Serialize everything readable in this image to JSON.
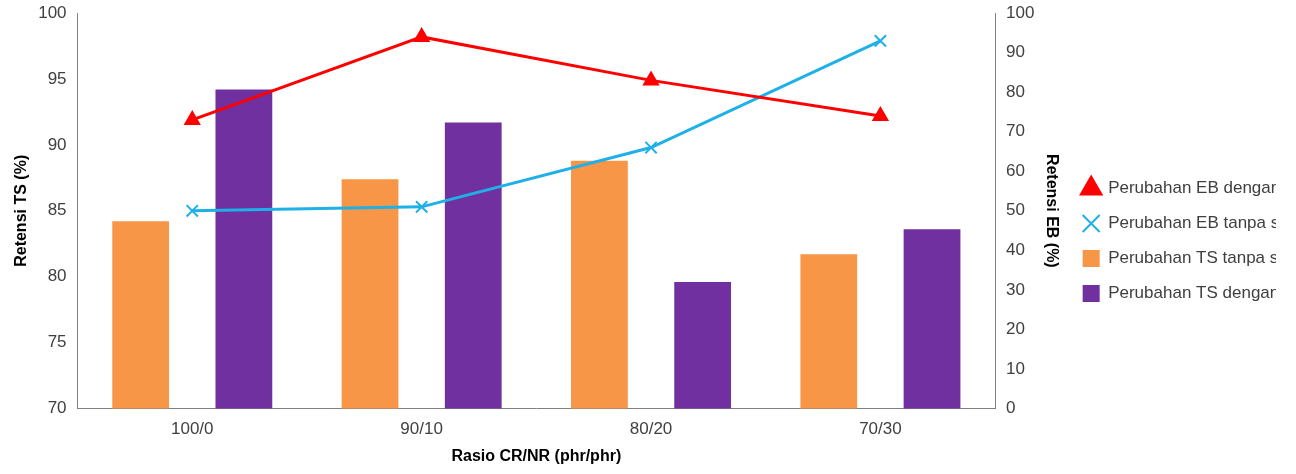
{
  "chart_data": {
    "type": "bar",
    "x_label": "Rasio CR/NR (phr/phr)",
    "y_label": "Retensi TS (%)",
    "y2_label": "Retensi EB (%)",
    "categories": [
      "100/0",
      "90/10",
      "80/20",
      "70/30"
    ],
    "ylim": [
      70,
      100
    ],
    "yticks": [
      70,
      75,
      80,
      85,
      90,
      95,
      100
    ],
    "y2lim": [
      0,
      100
    ],
    "y2ticks": [
      0,
      10,
      20,
      30,
      40,
      50,
      60,
      70,
      80,
      90,
      100
    ],
    "grid": false,
    "legend": "right",
    "series": [
      {
        "name": "Perubahan TS tanpa serat",
        "type": "bar",
        "color": "#f79646",
        "values": [
          84.2,
          87.4,
          88.8,
          81.7
        ]
      },
      {
        "name": "Perubahan TS dengan serat",
        "type": "bar",
        "color": "#7030a0",
        "values": [
          94.2,
          91.7,
          79.6,
          83.6
        ]
      },
      {
        "name": "Perubahan EB dengan serat",
        "type": "line",
        "axis": "y2",
        "color": "#ff0000",
        "marker": "triangle",
        "values": [
          73,
          94,
          83,
          74
        ]
      },
      {
        "name": "Perubahan EB tanpa serat",
        "type": "line",
        "axis": "y2",
        "color": "#1fb0e8",
        "marker": "x",
        "values": [
          50,
          51,
          66,
          93
        ]
      }
    ]
  }
}
